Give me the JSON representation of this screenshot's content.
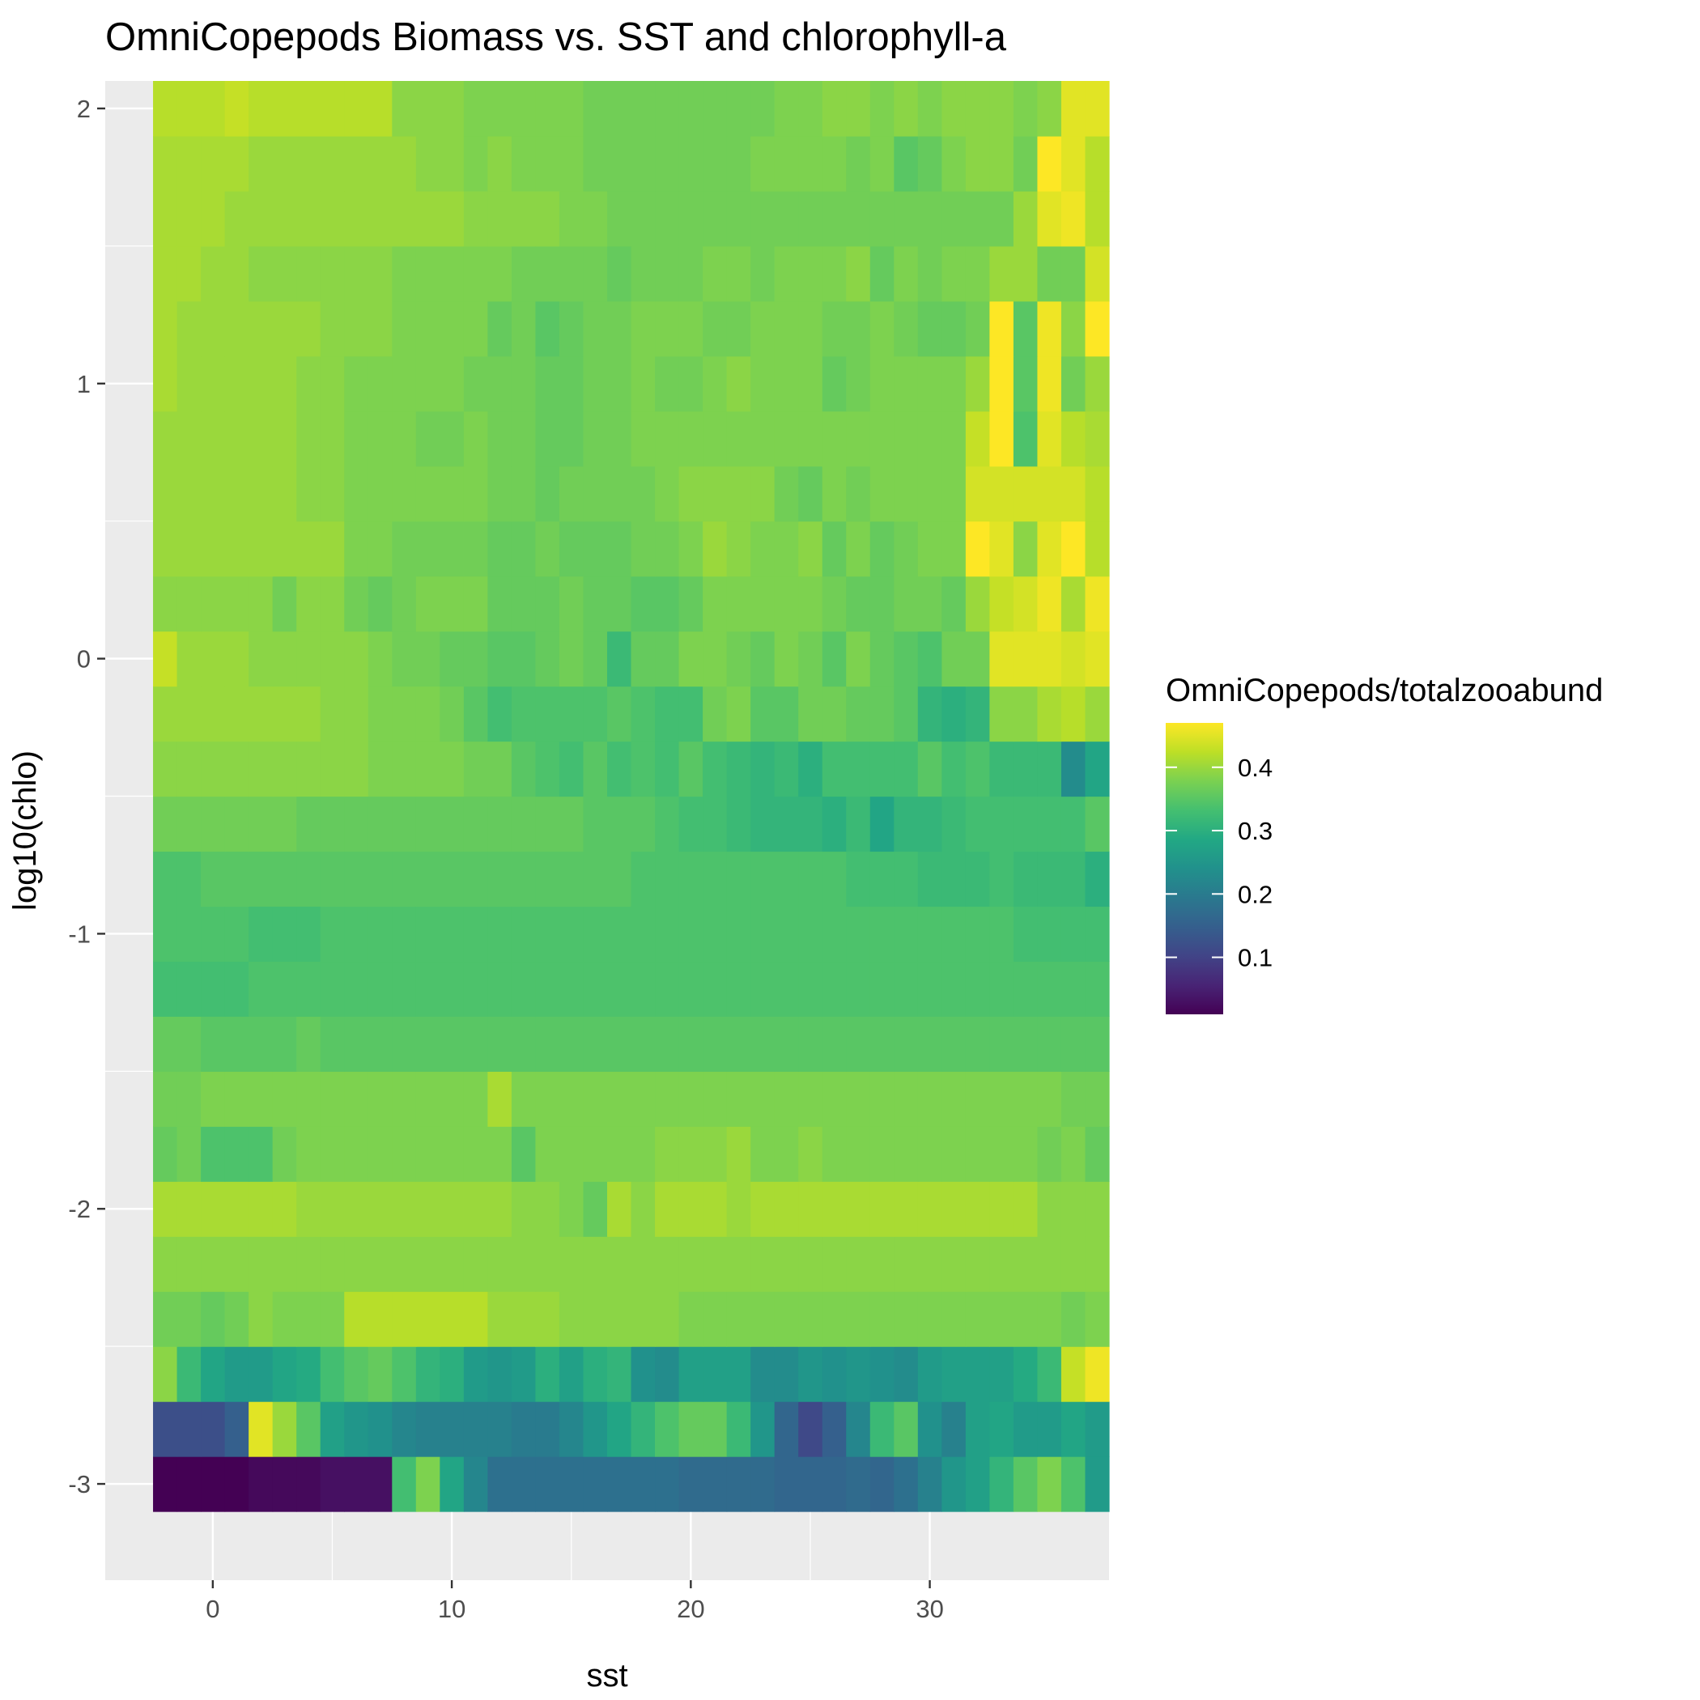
{
  "chart_data": {
    "type": "heatmap",
    "title": "OmniCopepods Biomass vs. SST and chlorophyll-a",
    "xlabel": "sst",
    "ylabel": "log10(chlo)",
    "xlim": [
      -4.5,
      37.5
    ],
    "ylim": [
      -3.35,
      2.1
    ],
    "x_ticks": [
      0,
      10,
      20,
      30
    ],
    "x_tick_labels": [
      "0",
      "10",
      "20",
      "30"
    ],
    "y_ticks": [
      -3,
      -2,
      -1,
      0,
      1,
      2
    ],
    "y_tick_labels": [
      "-3",
      "-2",
      "-1",
      "0",
      "1",
      "2"
    ],
    "x_start": -2.5,
    "x_step": 1,
    "y_start": -3.1,
    "y_step": 0.2,
    "colorscale": "viridis",
    "grid": true,
    "legend": {
      "title": "OmniCopepods/totalzooabund",
      "position": "right",
      "min": 0.01,
      "max": 0.47,
      "ticks": [
        0.1,
        0.2,
        0.3,
        0.4
      ],
      "tick_labels": [
        "0.1",
        "0.2",
        "0.3",
        "0.4"
      ]
    },
    "rows_bottom_to_top": [
      [
        0.01,
        0.01,
        0.01,
        0.01,
        0.02,
        0.02,
        0.02,
        0.03,
        0.03,
        0.03,
        0.33,
        0.38,
        0.28,
        0.22,
        0.18,
        0.18,
        0.18,
        0.18,
        0.18,
        0.18,
        0.18,
        0.18,
        0.17,
        0.17,
        0.17,
        0.17,
        0.16,
        0.16,
        0.16,
        0.17,
        0.16,
        0.18,
        0.21,
        0.25,
        0.27,
        0.31,
        0.35,
        0.38,
        0.34,
        0.26
      ],
      [
        0.12,
        0.12,
        0.12,
        0.15,
        0.45,
        0.4,
        0.35,
        0.27,
        0.25,
        0.24,
        0.22,
        0.21,
        0.21,
        0.21,
        0.21,
        0.2,
        0.2,
        0.22,
        0.25,
        0.28,
        0.31,
        0.34,
        0.36,
        0.36,
        0.32,
        0.25,
        0.16,
        0.11,
        0.15,
        0.22,
        0.32,
        0.35,
        0.24,
        0.21,
        0.27,
        0.28,
        0.26,
        0.26,
        0.28,
        0.26
      ],
      [
        0.39,
        0.32,
        0.28,
        0.26,
        0.26,
        0.28,
        0.29,
        0.33,
        0.35,
        0.36,
        0.34,
        0.31,
        0.3,
        0.26,
        0.25,
        0.26,
        0.3,
        0.27,
        0.3,
        0.31,
        0.24,
        0.23,
        0.27,
        0.27,
        0.27,
        0.23,
        0.23,
        0.25,
        0.24,
        0.25,
        0.24,
        0.23,
        0.26,
        0.27,
        0.27,
        0.27,
        0.29,
        0.32,
        0.43,
        0.46
      ],
      [
        0.37,
        0.37,
        0.36,
        0.37,
        0.39,
        0.38,
        0.38,
        0.38,
        0.42,
        0.42,
        0.42,
        0.42,
        0.42,
        0.42,
        0.4,
        0.4,
        0.4,
        0.39,
        0.39,
        0.39,
        0.39,
        0.39,
        0.38,
        0.38,
        0.38,
        0.38,
        0.38,
        0.38,
        0.38,
        0.38,
        0.38,
        0.38,
        0.38,
        0.38,
        0.38,
        0.38,
        0.38,
        0.38,
        0.37,
        0.38
      ],
      [
        0.39,
        0.39,
        0.39,
        0.39,
        0.39,
        0.39,
        0.39,
        0.39,
        0.39,
        0.39,
        0.39,
        0.39,
        0.39,
        0.39,
        0.39,
        0.39,
        0.39,
        0.39,
        0.39,
        0.39,
        0.39,
        0.39,
        0.39,
        0.39,
        0.39,
        0.39,
        0.39,
        0.39,
        0.39,
        0.39,
        0.39,
        0.39,
        0.39,
        0.39,
        0.39,
        0.39,
        0.39,
        0.39,
        0.39,
        0.39
      ],
      [
        0.41,
        0.41,
        0.41,
        0.41,
        0.41,
        0.41,
        0.4,
        0.4,
        0.4,
        0.4,
        0.4,
        0.4,
        0.4,
        0.4,
        0.4,
        0.39,
        0.39,
        0.38,
        0.36,
        0.41,
        0.39,
        0.41,
        0.41,
        0.41,
        0.4,
        0.41,
        0.41,
        0.41,
        0.41,
        0.41,
        0.41,
        0.41,
        0.41,
        0.41,
        0.41,
        0.41,
        0.41,
        0.39,
        0.39,
        0.39
      ],
      [
        0.36,
        0.37,
        0.34,
        0.34,
        0.34,
        0.37,
        0.38,
        0.38,
        0.38,
        0.38,
        0.38,
        0.38,
        0.38,
        0.38,
        0.38,
        0.35,
        0.38,
        0.38,
        0.38,
        0.38,
        0.38,
        0.39,
        0.39,
        0.39,
        0.4,
        0.38,
        0.38,
        0.39,
        0.38,
        0.38,
        0.38,
        0.38,
        0.38,
        0.38,
        0.38,
        0.38,
        0.38,
        0.37,
        0.38,
        0.36
      ],
      [
        0.37,
        0.37,
        0.38,
        0.38,
        0.38,
        0.38,
        0.38,
        0.38,
        0.38,
        0.38,
        0.38,
        0.38,
        0.38,
        0.38,
        0.41,
        0.38,
        0.38,
        0.38,
        0.38,
        0.38,
        0.38,
        0.38,
        0.38,
        0.38,
        0.38,
        0.38,
        0.38,
        0.38,
        0.38,
        0.38,
        0.38,
        0.38,
        0.38,
        0.38,
        0.38,
        0.38,
        0.38,
        0.38,
        0.37,
        0.37
      ],
      [
        0.36,
        0.36,
        0.35,
        0.35,
        0.35,
        0.35,
        0.36,
        0.35,
        0.35,
        0.35,
        0.35,
        0.35,
        0.35,
        0.35,
        0.35,
        0.35,
        0.35,
        0.35,
        0.35,
        0.35,
        0.35,
        0.35,
        0.35,
        0.35,
        0.35,
        0.35,
        0.35,
        0.35,
        0.35,
        0.35,
        0.35,
        0.35,
        0.35,
        0.35,
        0.35,
        0.35,
        0.35,
        0.35,
        0.35,
        0.35
      ],
      [
        0.33,
        0.33,
        0.33,
        0.33,
        0.34,
        0.34,
        0.34,
        0.34,
        0.34,
        0.34,
        0.34,
        0.34,
        0.34,
        0.34,
        0.34,
        0.34,
        0.34,
        0.34,
        0.34,
        0.34,
        0.34,
        0.34,
        0.34,
        0.34,
        0.34,
        0.34,
        0.34,
        0.34,
        0.34,
        0.34,
        0.34,
        0.34,
        0.34,
        0.34,
        0.34,
        0.34,
        0.34,
        0.34,
        0.34,
        0.34
      ],
      [
        0.34,
        0.34,
        0.34,
        0.34,
        0.33,
        0.33,
        0.33,
        0.34,
        0.34,
        0.34,
        0.34,
        0.34,
        0.34,
        0.34,
        0.34,
        0.34,
        0.34,
        0.34,
        0.34,
        0.34,
        0.34,
        0.34,
        0.34,
        0.34,
        0.34,
        0.34,
        0.34,
        0.34,
        0.34,
        0.34,
        0.34,
        0.34,
        0.34,
        0.34,
        0.34,
        0.34,
        0.33,
        0.33,
        0.33,
        0.33
      ],
      [
        0.34,
        0.34,
        0.35,
        0.35,
        0.35,
        0.35,
        0.35,
        0.35,
        0.35,
        0.35,
        0.35,
        0.35,
        0.35,
        0.35,
        0.35,
        0.35,
        0.35,
        0.35,
        0.35,
        0.35,
        0.34,
        0.34,
        0.34,
        0.34,
        0.34,
        0.34,
        0.34,
        0.34,
        0.34,
        0.33,
        0.33,
        0.33,
        0.32,
        0.32,
        0.32,
        0.33,
        0.32,
        0.32,
        0.32,
        0.3
      ],
      [
        0.37,
        0.37,
        0.37,
        0.37,
        0.37,
        0.37,
        0.36,
        0.36,
        0.36,
        0.36,
        0.36,
        0.36,
        0.36,
        0.36,
        0.36,
        0.36,
        0.36,
        0.36,
        0.35,
        0.35,
        0.35,
        0.34,
        0.33,
        0.33,
        0.32,
        0.31,
        0.31,
        0.31,
        0.3,
        0.32,
        0.28,
        0.31,
        0.31,
        0.32,
        0.33,
        0.33,
        0.33,
        0.33,
        0.33,
        0.35
      ],
      [
        0.39,
        0.39,
        0.39,
        0.39,
        0.39,
        0.39,
        0.39,
        0.39,
        0.39,
        0.38,
        0.38,
        0.38,
        0.38,
        0.37,
        0.37,
        0.35,
        0.34,
        0.33,
        0.35,
        0.33,
        0.34,
        0.33,
        0.35,
        0.33,
        0.32,
        0.31,
        0.32,
        0.3,
        0.33,
        0.33,
        0.33,
        0.33,
        0.35,
        0.33,
        0.34,
        0.32,
        0.32,
        0.32,
        0.23,
        0.28
      ],
      [
        0.4,
        0.4,
        0.4,
        0.4,
        0.4,
        0.4,
        0.4,
        0.39,
        0.39,
        0.38,
        0.38,
        0.38,
        0.37,
        0.35,
        0.33,
        0.34,
        0.34,
        0.34,
        0.34,
        0.35,
        0.34,
        0.33,
        0.33,
        0.37,
        0.38,
        0.35,
        0.35,
        0.37,
        0.37,
        0.36,
        0.36,
        0.35,
        0.31,
        0.3,
        0.31,
        0.39,
        0.39,
        0.41,
        0.42,
        0.4
      ],
      [
        0.43,
        0.4,
        0.4,
        0.4,
        0.39,
        0.39,
        0.39,
        0.39,
        0.39,
        0.38,
        0.37,
        0.37,
        0.36,
        0.36,
        0.35,
        0.35,
        0.36,
        0.37,
        0.36,
        0.32,
        0.36,
        0.36,
        0.38,
        0.38,
        0.37,
        0.36,
        0.38,
        0.37,
        0.35,
        0.38,
        0.36,
        0.35,
        0.34,
        0.37,
        0.37,
        0.45,
        0.45,
        0.45,
        0.44,
        0.45
      ],
      [
        0.39,
        0.39,
        0.39,
        0.39,
        0.39,
        0.37,
        0.39,
        0.39,
        0.37,
        0.36,
        0.37,
        0.38,
        0.38,
        0.38,
        0.36,
        0.36,
        0.36,
        0.37,
        0.36,
        0.36,
        0.35,
        0.35,
        0.36,
        0.38,
        0.38,
        0.38,
        0.38,
        0.38,
        0.37,
        0.36,
        0.36,
        0.37,
        0.37,
        0.36,
        0.4,
        0.43,
        0.44,
        0.46,
        0.41,
        0.46
      ],
      [
        0.4,
        0.4,
        0.4,
        0.4,
        0.4,
        0.4,
        0.4,
        0.4,
        0.38,
        0.38,
        0.37,
        0.37,
        0.37,
        0.37,
        0.36,
        0.36,
        0.37,
        0.36,
        0.36,
        0.36,
        0.37,
        0.37,
        0.38,
        0.4,
        0.39,
        0.38,
        0.38,
        0.39,
        0.36,
        0.38,
        0.36,
        0.37,
        0.38,
        0.38,
        0.47,
        0.45,
        0.39,
        0.45,
        0.47,
        0.42
      ],
      [
        0.4,
        0.4,
        0.4,
        0.4,
        0.4,
        0.4,
        0.39,
        0.39,
        0.38,
        0.38,
        0.38,
        0.38,
        0.38,
        0.38,
        0.37,
        0.37,
        0.36,
        0.37,
        0.37,
        0.37,
        0.37,
        0.38,
        0.39,
        0.39,
        0.39,
        0.39,
        0.37,
        0.36,
        0.38,
        0.37,
        0.38,
        0.38,
        0.38,
        0.38,
        0.44,
        0.44,
        0.44,
        0.44,
        0.44,
        0.42
      ],
      [
        0.4,
        0.4,
        0.4,
        0.4,
        0.4,
        0.4,
        0.39,
        0.39,
        0.38,
        0.38,
        0.38,
        0.37,
        0.37,
        0.38,
        0.37,
        0.37,
        0.36,
        0.36,
        0.37,
        0.37,
        0.38,
        0.38,
        0.38,
        0.38,
        0.38,
        0.38,
        0.38,
        0.38,
        0.38,
        0.38,
        0.38,
        0.38,
        0.38,
        0.38,
        0.43,
        0.47,
        0.34,
        0.45,
        0.42,
        0.41
      ],
      [
        0.41,
        0.4,
        0.4,
        0.4,
        0.4,
        0.4,
        0.39,
        0.39,
        0.38,
        0.38,
        0.38,
        0.38,
        0.38,
        0.37,
        0.37,
        0.37,
        0.36,
        0.36,
        0.37,
        0.37,
        0.38,
        0.37,
        0.37,
        0.38,
        0.39,
        0.38,
        0.38,
        0.38,
        0.36,
        0.37,
        0.38,
        0.38,
        0.38,
        0.38,
        0.4,
        0.47,
        0.35,
        0.46,
        0.37,
        0.4
      ],
      [
        0.41,
        0.4,
        0.4,
        0.4,
        0.4,
        0.4,
        0.4,
        0.39,
        0.39,
        0.39,
        0.38,
        0.38,
        0.38,
        0.38,
        0.36,
        0.37,
        0.35,
        0.36,
        0.37,
        0.37,
        0.38,
        0.38,
        0.38,
        0.37,
        0.37,
        0.38,
        0.38,
        0.38,
        0.37,
        0.37,
        0.38,
        0.37,
        0.36,
        0.36,
        0.37,
        0.47,
        0.35,
        0.46,
        0.39,
        0.47
      ],
      [
        0.41,
        0.41,
        0.4,
        0.4,
        0.39,
        0.39,
        0.39,
        0.39,
        0.39,
        0.39,
        0.38,
        0.38,
        0.38,
        0.38,
        0.38,
        0.37,
        0.37,
        0.37,
        0.37,
        0.36,
        0.37,
        0.37,
        0.37,
        0.38,
        0.38,
        0.37,
        0.38,
        0.38,
        0.38,
        0.39,
        0.36,
        0.38,
        0.37,
        0.38,
        0.38,
        0.4,
        0.4,
        0.37,
        0.37,
        0.44
      ],
      [
        0.41,
        0.41,
        0.41,
        0.4,
        0.4,
        0.4,
        0.4,
        0.4,
        0.4,
        0.4,
        0.4,
        0.4,
        0.4,
        0.39,
        0.39,
        0.39,
        0.39,
        0.38,
        0.38,
        0.37,
        0.37,
        0.37,
        0.37,
        0.37,
        0.37,
        0.37,
        0.37,
        0.37,
        0.37,
        0.37,
        0.37,
        0.37,
        0.37,
        0.37,
        0.37,
        0.37,
        0.4,
        0.45,
        0.46,
        0.42
      ],
      [
        0.41,
        0.41,
        0.41,
        0.41,
        0.4,
        0.4,
        0.4,
        0.4,
        0.4,
        0.4,
        0.4,
        0.39,
        0.39,
        0.38,
        0.39,
        0.38,
        0.38,
        0.38,
        0.37,
        0.37,
        0.37,
        0.37,
        0.37,
        0.37,
        0.37,
        0.38,
        0.38,
        0.38,
        0.38,
        0.37,
        0.38,
        0.35,
        0.36,
        0.38,
        0.39,
        0.39,
        0.37,
        0.47,
        0.45,
        0.42
      ],
      [
        0.42,
        0.42,
        0.42,
        0.43,
        0.42,
        0.42,
        0.42,
        0.42,
        0.42,
        0.42,
        0.39,
        0.39,
        0.39,
        0.38,
        0.38,
        0.38,
        0.38,
        0.38,
        0.37,
        0.37,
        0.37,
        0.37,
        0.37,
        0.37,
        0.37,
        0.37,
        0.38,
        0.38,
        0.39,
        0.39,
        0.38,
        0.39,
        0.38,
        0.39,
        0.39,
        0.39,
        0.38,
        0.39,
        0.45,
        0.45
      ]
    ]
  }
}
